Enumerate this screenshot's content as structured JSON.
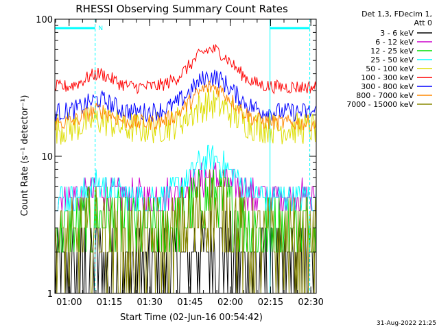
{
  "chart_data": {
    "type": "line",
    "title": "RHESSI Observing Summary Count Rates",
    "xlabel": "Start Time (02-Jun-16 00:54:42)",
    "ylabel": "Count Rate (s⁻¹ detector⁻¹)",
    "ylog": true,
    "ylim": [
      1,
      100
    ],
    "xlim_minutes": [
      54.7,
      152
    ],
    "x_ticks": [
      {
        "m": 60,
        "label": "01:00"
      },
      {
        "m": 75,
        "label": "01:15"
      },
      {
        "m": 90,
        "label": "01:30"
      },
      {
        "m": 105,
        "label": "01:45"
      },
      {
        "m": 120,
        "label": "02:00"
      },
      {
        "m": 135,
        "label": "02:15"
      },
      {
        "m": 150,
        "label": "02:30"
      }
    ],
    "y_ticks": [
      {
        "v": 1,
        "label": "1"
      },
      {
        "v": 10,
        "label": "10"
      },
      {
        "v": 100,
        "label": "100"
      }
    ],
    "legend_header": [
      "Det 1,3, FDecim 1,",
      "Att 0"
    ],
    "legend_position": "right",
    "annotations": {
      "night_flag_label": "N",
      "night_intervals_minutes": [
        [
          54.7,
          69.7
        ],
        [
          134.8,
          149.6
        ]
      ],
      "dashed_vertical_minutes": [
        69.7,
        149.6
      ],
      "solid_vertical_minutes": [
        134.8
      ]
    },
    "timestamp": "31-Aug-2022 21:25",
    "series": [
      {
        "name": "3 - 6 keV",
        "color": "#000000",
        "base": 1.5,
        "peak": 2.2,
        "noise": 0.3,
        "quantized": true
      },
      {
        "name": "6 - 12 keV",
        "color": "#cc00cc",
        "base": 5.0,
        "peak": 7.0,
        "noise": 0.12,
        "quantized": true
      },
      {
        "name": "12 - 25 keV",
        "color": "#00dd00",
        "base": 3.0,
        "peak": 5.0,
        "noise": 0.25,
        "quantized": true
      },
      {
        "name": "25 - 50 keV",
        "color": "#00ffff",
        "base": 5.0,
        "peak": 9.5,
        "noise": 0.1,
        "quantized": true
      },
      {
        "name": "50 - 100 keV",
        "color": "#dddd00",
        "base": 16,
        "peak": 24,
        "noise": 0.12,
        "quantized": false
      },
      {
        "name": "100 - 300 keV",
        "color": "#ff0000",
        "base": 32,
        "peak": 60,
        "noise": 0.05,
        "quantized": false
      },
      {
        "name": "300 - 800 keV",
        "color": "#0000ff",
        "base": 21,
        "peak": 38,
        "noise": 0.07,
        "quantized": false
      },
      {
        "name": "800 - 7000 keV",
        "color": "#ff8800",
        "base": 17.5,
        "peak": 32,
        "noise": 0.06,
        "quantized": false
      },
      {
        "name": "7000 - 15000 keV",
        "color": "#888800",
        "base": 2.2,
        "peak": 4.0,
        "noise": 0.35,
        "quantized": true
      }
    ]
  }
}
